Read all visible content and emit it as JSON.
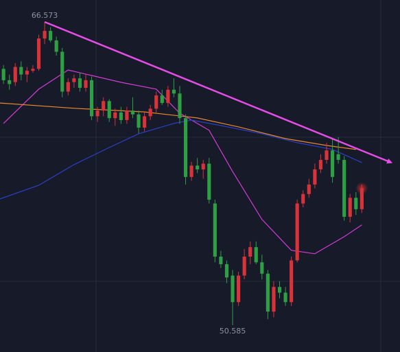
{
  "chart_data": {
    "type": "candlestick",
    "up_color": "#d9333a",
    "down_color": "#2ea043",
    "max_label": "66.573",
    "min_label": "50.585",
    "xlim": [
      -0.6,
      67.5
    ],
    "ylim": [
      49.17,
      67.73
    ],
    "candles": [
      [
        64.1,
        64.3,
        63.3,
        63.5
      ],
      [
        63.5,
        63.8,
        63.0,
        63.3
      ],
      [
        63.4,
        64.4,
        63.2,
        64.2
      ],
      [
        64.2,
        64.5,
        63.5,
        63.8
      ],
      [
        63.8,
        64.2,
        63.4,
        64.0
      ],
      [
        64.0,
        64.3,
        63.9,
        64.1
      ],
      [
        64.1,
        65.9,
        64.0,
        65.7
      ],
      [
        65.7,
        66.573,
        65.4,
        66.1
      ],
      [
        66.1,
        66.3,
        65.5,
        65.6
      ],
      [
        65.6,
        65.8,
        64.8,
        65.0
      ],
      [
        65.0,
        65.2,
        62.6,
        62.9
      ],
      [
        62.9,
        63.6,
        62.7,
        63.4
      ],
      [
        63.4,
        63.8,
        63.1,
        63.6
      ],
      [
        63.6,
        63.9,
        62.9,
        63.1
      ],
      [
        63.1,
        63.8,
        62.9,
        63.5
      ],
      [
        63.5,
        63.7,
        61.4,
        61.6
      ],
      [
        61.6,
        62.1,
        61.3,
        61.9
      ],
      [
        61.9,
        62.6,
        61.6,
        62.4
      ],
      [
        62.4,
        62.5,
        61.3,
        61.5
      ],
      [
        61.5,
        62.0,
        61.1,
        61.8
      ],
      [
        61.8,
        62.1,
        61.2,
        61.4
      ],
      [
        61.4,
        62.1,
        61.2,
        61.9
      ],
      [
        61.9,
        62.6,
        61.5,
        61.7
      ],
      [
        61.7,
        61.9,
        60.7,
        61.0
      ],
      [
        61.0,
        61.8,
        60.8,
        61.6
      ],
      [
        61.6,
        62.2,
        61.4,
        62.0
      ],
      [
        62.0,
        62.9,
        61.8,
        62.7
      ],
      [
        62.7,
        63.0,
        62.2,
        62.3
      ],
      [
        62.3,
        63.2,
        62.1,
        63.0
      ],
      [
        63.0,
        63.6,
        62.6,
        62.8
      ],
      [
        62.8,
        63.2,
        61.2,
        61.5
      ],
      [
        61.5,
        61.7,
        58.0,
        58.4
      ],
      [
        58.4,
        59.2,
        58.2,
        59.0
      ],
      [
        59.0,
        59.4,
        58.6,
        58.8
      ],
      [
        58.8,
        59.3,
        58.3,
        59.1
      ],
      [
        59.1,
        59.4,
        57.0,
        57.2
      ],
      [
        57.0,
        57.2,
        53.9,
        54.2
      ],
      [
        54.2,
        54.5,
        53.6,
        53.8
      ],
      [
        53.8,
        54.0,
        52.8,
        53.1
      ],
      [
        53.2,
        53.5,
        50.585,
        51.8
      ],
      [
        51.8,
        53.4,
        51.6,
        53.2
      ],
      [
        53.2,
        54.6,
        53.0,
        54.2
      ],
      [
        54.2,
        55.0,
        53.8,
        54.7
      ],
      [
        54.7,
        55.0,
        53.8,
        53.9
      ],
      [
        53.9,
        54.3,
        53.0,
        53.3
      ],
      [
        53.3,
        53.5,
        50.9,
        51.3
      ],
      [
        51.3,
        52.9,
        51.0,
        52.6
      ],
      [
        52.6,
        52.9,
        52.0,
        52.3
      ],
      [
        52.3,
        52.6,
        51.6,
        51.8
      ],
      [
        51.8,
        54.2,
        51.6,
        54.0
      ],
      [
        54.0,
        57.2,
        53.9,
        57.0
      ],
      [
        57.0,
        57.7,
        56.8,
        57.5
      ],
      [
        57.5,
        58.3,
        57.3,
        58.0
      ],
      [
        58.0,
        59.1,
        57.8,
        58.8
      ],
      [
        58.8,
        59.6,
        58.6,
        59.3
      ],
      [
        59.3,
        60.2,
        59.1,
        59.8
      ],
      [
        59.8,
        60.4,
        58.1,
        58.4
      ],
      [
        59.6,
        60.5,
        59.1,
        59.3
      ],
      [
        59.3,
        59.5,
        56.1,
        56.3
      ],
      [
        56.3,
        57.5,
        56.0,
        57.3
      ],
      [
        57.3,
        57.6,
        56.4,
        56.7
      ],
      [
        56.7,
        58.0,
        56.5,
        57.8
      ]
    ],
    "lines": [
      {
        "color": "#d63bd6",
        "x": [
          0,
          6,
          11,
          15,
          20,
          26,
          30,
          35,
          39,
          44,
          49,
          53,
          58,
          61
        ],
        "values": [
          61.22,
          63.03,
          64.04,
          63.75,
          63.39,
          63.03,
          61.76,
          60.86,
          58.69,
          56.16,
          54.53,
          54.35,
          55.25,
          55.87
        ]
      },
      {
        "color": "#e8872c",
        "x": [
          -0.6,
          12,
          24,
          33,
          40,
          48,
          55,
          60
        ],
        "values": [
          62.3,
          62.02,
          61.83,
          61.51,
          61.04,
          60.42,
          60.06,
          59.85
        ]
      },
      {
        "color": "#2a40c8",
        "x": [
          -0.6,
          6,
          12,
          18,
          23,
          29,
          32,
          37,
          44,
          50,
          56,
          61
        ],
        "values": [
          57.24,
          57.96,
          59.05,
          59.95,
          60.68,
          61.22,
          61.4,
          61.11,
          60.68,
          60.21,
          59.85,
          59.16
        ]
      }
    ],
    "trend": {
      "color": "#e64ce6",
      "x": [
        7,
        66
      ],
      "values": [
        66.573,
        59.16
      ]
    }
  }
}
